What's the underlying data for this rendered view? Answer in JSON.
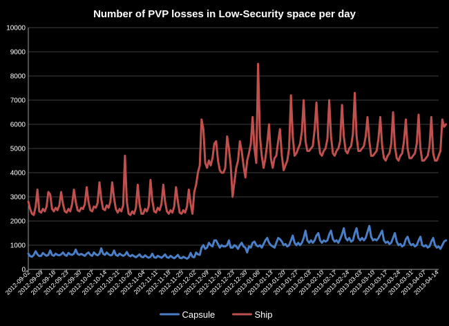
{
  "chart_data": {
    "type": "line",
    "title": "Number of PVP losses in Low-Security space per day",
    "xlabel": "",
    "ylabel": "",
    "ylim": [
      0,
      10000
    ],
    "yticks": [
      0,
      1000,
      2000,
      3000,
      4000,
      5000,
      6000,
      7000,
      8000,
      9000,
      10000
    ],
    "grid": true,
    "legend_position": "bottom",
    "x_start": "2012-09-02",
    "x_end": "2013-04-15",
    "x_tick_labels": [
      "2012-09-02",
      "2012-09-09",
      "2012-09-16",
      "2012-09-23",
      "2012-09-30",
      "2012-10-07",
      "2012-10-14",
      "2012-10-21",
      "2012-10-28",
      "2012-11-04",
      "2012-11-11",
      "2012-11-18",
      "2012-11-25",
      "2012-12-02",
      "2012-12-09",
      "2012-12-16",
      "2012-12-23",
      "2012-12-30",
      "2013-01-06",
      "2013-01-13",
      "2013-01-20",
      "2013-01-27",
      "2013-02-03",
      "2013-02-10",
      "2013-02-17",
      "2013-02-24",
      "2013-03-03",
      "2013-03-10",
      "2013-03-17",
      "2013-03-24",
      "2013-03-31",
      "2013-04-07",
      "2013-04-14"
    ],
    "series": [
      {
        "name": "Capsule",
        "color": "#4a7fc8",
        "values": [
          650,
          550,
          520,
          600,
          750,
          620,
          550,
          560,
          680,
          610,
          560,
          600,
          780,
          600,
          560,
          650,
          600,
          580,
          620,
          700,
          600,
          560,
          680,
          620,
          600,
          650,
          820,
          640,
          600,
          640,
          600,
          560,
          650,
          700,
          600,
          560,
          700,
          620,
          580,
          650,
          870,
          650,
          600,
          700,
          620,
          580,
          600,
          780,
          600,
          560,
          650,
          600,
          560,
          600,
          720,
          580,
          540,
          600,
          540,
          500,
          560,
          620,
          520,
          500,
          580,
          520,
          480,
          520,
          650,
          500,
          480,
          560,
          520,
          480,
          540,
          620,
          500,
          480,
          560,
          500,
          460,
          520,
          600,
          480,
          460,
          520,
          480,
          440,
          500,
          680,
          520,
          500,
          700,
          620,
          600,
          900,
          1000,
          850,
          900,
          1100,
          1000,
          950,
          1200,
          1200,
          1050,
          900,
          1000,
          950,
          950,
          1000,
          1200,
          900,
          900,
          1000,
          950,
          850,
          1000,
          1100,
          950,
          900,
          700,
          950,
          900,
          1100,
          1150,
          1000,
          950,
          1000,
          900,
          1050,
          1200,
          1300,
          1100,
          1000,
          950,
          900,
          1100,
          1300,
          1250,
          1150,
          1000,
          1050,
          950,
          1000,
          1200,
          1400,
          1100,
          1000,
          1100,
          1000,
          1100,
          1300,
          1600,
          1200,
          1100,
          1200,
          1100,
          1200,
          1400,
          1500,
          1200,
          1100,
          1200,
          1150,
          1200,
          1450,
          1600,
          1250,
          1150,
          1200,
          1100,
          1250,
          1450,
          1700,
          1300,
          1200,
          1300,
          1150,
          1200,
          1500,
          1700,
          1300,
          1200,
          1300,
          1200,
          1300,
          1550,
          1800,
          1350,
          1200,
          1250,
          1200,
          1300,
          1450,
          1600,
          1200,
          1100,
          1150,
          1050,
          1100,
          1300,
          1500,
          1150,
          1000,
          1050,
          950,
          1000,
          1250,
          1350,
          1100,
          1000,
          1050,
          950,
          1000,
          1200,
          1350,
          1000,
          950,
          1000,
          900,
          950,
          1150,
          1300,
          1000,
          900,
          950,
          850,
          1000,
          1150,
          1200
        ]
      },
      {
        "name": "Ship",
        "color": "#c0504d",
        "values": [
          2800,
          2500,
          2300,
          2250,
          2600,
          3300,
          2400,
          2350,
          2500,
          2400,
          2600,
          3200,
          3100,
          2500,
          2400,
          2550,
          2450,
          2650,
          3200,
          2700,
          2400,
          2350,
          2500,
          2400,
          2700,
          3300,
          2800,
          2450,
          2400,
          2550,
          2500,
          2700,
          3400,
          2800,
          2450,
          2400,
          2600,
          2550,
          2750,
          3600,
          2900,
          2500,
          2450,
          2650,
          2550,
          2800,
          3600,
          2950,
          2500,
          2350,
          2500,
          2400,
          2650,
          4700,
          2800,
          2300,
          2250,
          2400,
          2300,
          2550,
          3500,
          2700,
          2300,
          2300,
          2500,
          2400,
          2600,
          3700,
          2850,
          2400,
          2350,
          2550,
          2450,
          2700,
          3500,
          2800,
          2400,
          2300,
          2450,
          2350,
          2600,
          3400,
          2800,
          2350,
          2300,
          2450,
          2350,
          2600,
          3300,
          2700,
          2300,
          3200,
          3500,
          4000,
          4300,
          6200,
          5800,
          4400,
          4200,
          4500,
          4300,
          4600,
          5200,
          5300,
          4500,
          4100,
          4000,
          4000,
          4200,
          5500,
          5000,
          4300,
          3000,
          3600,
          4200,
          4500,
          5300,
          4900,
          4300,
          3800,
          4500,
          4800,
          5200,
          6300,
          5000,
          4400,
          8500,
          5500,
          4700,
          4200,
          4600,
          5200,
          6000,
          4600,
          4200,
          4600,
          4700,
          5300,
          5800,
          4700,
          4100,
          4300,
          4500,
          5000,
          7200,
          5500,
          4700,
          4800,
          5000,
          5200,
          5700,
          7000,
          5300,
          4900,
          4900,
          5000,
          5100,
          5800,
          6900,
          5400,
          4800,
          4700,
          4900,
          5000,
          5400,
          7000,
          5500,
          4800,
          4700,
          4900,
          5000,
          5300,
          6800,
          5500,
          4900,
          4800,
          5000,
          5100,
          5600,
          7300,
          5500,
          4900,
          4900,
          5000,
          5100,
          5500,
          6300,
          5300,
          4700,
          4700,
          4800,
          4900,
          5400,
          6300,
          5100,
          4600,
          4500,
          4700,
          4800,
          5200,
          6500,
          5100,
          4600,
          4500,
          4700,
          4800,
          5300,
          6200,
          5000,
          4600,
          4600,
          4700,
          4800,
          5200,
          6400,
          5000,
          4500,
          4500,
          4600,
          4700,
          5100,
          6300,
          4800,
          4500,
          4500,
          4700,
          4900,
          6200,
          5900,
          6000
        ]
      }
    ]
  }
}
